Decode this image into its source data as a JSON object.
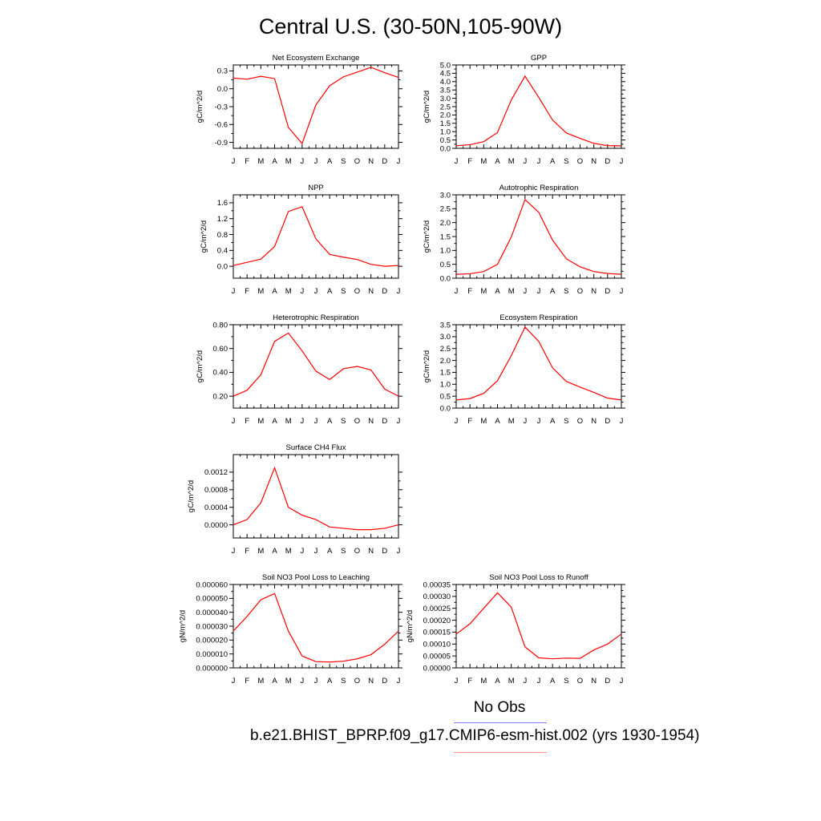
{
  "title": "Central U.S. (30-50N,105-90W)",
  "months": [
    "J",
    "F",
    "M",
    "A",
    "M",
    "J",
    "J",
    "A",
    "S",
    "O",
    "N",
    "D",
    "J"
  ],
  "line_color": "#ff0000",
  "legend": {
    "obs_label": "No Obs",
    "obs_color": "#7b7bef",
    "run_label": "b.e21.BHIST_BPRP.f09_g17.CMIP6-esm-hist.002 (yrs 1930-1954)",
    "run_color": "#ff8a8a"
  },
  "chart_data": [
    {
      "type": "line",
      "title": "Net Ecosystem Exchange",
      "ylabel": "gC/m^2/d",
      "ylim": [
        -1.0,
        0.4
      ],
      "yticks": [
        0.3,
        0.0,
        -0.3,
        -0.6,
        -0.9
      ],
      "yticklabels": [
        "0.3",
        "0.0",
        "-0.3",
        "-0.6",
        "-0.9"
      ],
      "series": [
        {
          "values": [
            0.18,
            0.16,
            0.21,
            0.17,
            -0.65,
            -0.92,
            -0.27,
            0.05,
            0.2,
            0.28,
            0.36,
            0.27,
            0.19
          ]
        }
      ]
    },
    {
      "type": "line",
      "title": "GPP",
      "ylabel": "gC/m^2/d",
      "ylim": [
        0.0,
        5.0
      ],
      "yticks": [
        0,
        0.5,
        1,
        1.5,
        2,
        2.5,
        3,
        3.5,
        4,
        4.5,
        5
      ],
      "yticklabels": [
        "0.0",
        "0.5",
        "1.0",
        "1.5",
        "2.0",
        "2.5",
        "3.0",
        "3.5",
        "4.0",
        "4.5",
        "5.0"
      ],
      "series": [
        {
          "values": [
            0.15,
            0.22,
            0.4,
            0.95,
            2.9,
            4.33,
            3.05,
            1.7,
            0.92,
            0.6,
            0.3,
            0.16,
            0.15
          ]
        }
      ]
    },
    {
      "type": "line",
      "title": "NPP",
      "ylabel": "gC/m^2/d",
      "ylim": [
        -0.3,
        1.8
      ],
      "yticks": [
        0.0,
        0.4,
        0.8,
        1.2,
        1.6
      ],
      "yticklabels": [
        "0.0",
        "0.4",
        "0.8",
        "1.2",
        "1.6"
      ],
      "series": [
        {
          "values": [
            0.02,
            0.1,
            0.18,
            0.5,
            1.38,
            1.5,
            0.69,
            0.3,
            0.23,
            0.17,
            0.05,
            0.0,
            0.02
          ]
        }
      ]
    },
    {
      "type": "line",
      "title": "Autotrophic Respiration",
      "ylabel": "gC/m^2/d",
      "ylim": [
        0.0,
        3.0
      ],
      "yticks": [
        0,
        0.5,
        1,
        1.5,
        2,
        2.5,
        3
      ],
      "yticklabels": [
        "0.0",
        "0.5",
        "1.0",
        "1.5",
        "2.0",
        "2.5",
        "3.0"
      ],
      "series": [
        {
          "values": [
            0.14,
            0.16,
            0.24,
            0.5,
            1.48,
            2.83,
            2.37,
            1.37,
            0.7,
            0.41,
            0.24,
            0.17,
            0.14
          ]
        }
      ]
    },
    {
      "type": "line",
      "title": "Heterotrophic Respiration",
      "ylabel": "gC/m^2/d",
      "ylim": [
        0.1,
        0.8
      ],
      "yticks": [
        0.2,
        0.4,
        0.6,
        0.8
      ],
      "yticklabels": [
        "0.20",
        "0.40",
        "0.60",
        "0.80"
      ],
      "series": [
        {
          "values": [
            0.2,
            0.25,
            0.38,
            0.66,
            0.73,
            0.58,
            0.41,
            0.34,
            0.43,
            0.45,
            0.42,
            0.26,
            0.2
          ]
        }
      ]
    },
    {
      "type": "line",
      "title": "Ecosystem Respiration",
      "ylabel": "gC/m^2/d",
      "ylim": [
        0.0,
        3.5
      ],
      "yticks": [
        0,
        0.5,
        1,
        1.5,
        2,
        2.5,
        3,
        3.5
      ],
      "yticklabels": [
        "0.0",
        "0.5",
        "1.0",
        "1.5",
        "2.0",
        "2.5",
        "3.0",
        "3.5"
      ],
      "series": [
        {
          "values": [
            0.34,
            0.4,
            0.62,
            1.15,
            2.2,
            3.4,
            2.8,
            1.69,
            1.12,
            0.88,
            0.66,
            0.42,
            0.34
          ]
        }
      ]
    },
    {
      "type": "line",
      "title": "Surface CH4 Flux",
      "ylabel": "gC/m^2/d",
      "ylim": [
        -0.0003,
        0.0016
      ],
      "yticks": [
        0.0,
        0.0004,
        0.0008,
        0.0012
      ],
      "yticklabels": [
        "0.0000",
        "0.0004",
        "0.0008",
        "0.0012"
      ],
      "series": [
        {
          "values": [
            0.0,
            0.00012,
            0.0005,
            0.0013,
            0.0004,
            0.00022,
            0.00012,
            -5e-05,
            -8e-05,
            -0.00011,
            -0.00011,
            -8e-05,
            0.0
          ]
        }
      ]
    },
    {
      "type": "line",
      "title": "Soil NO3 Pool Loss to Leaching",
      "ylabel": "gN/m^2/d",
      "ylim": [
        0.0,
        6e-05
      ],
      "yticks": [
        0,
        1e-05,
        2e-05,
        3e-05,
        4e-05,
        5e-05,
        6e-05
      ],
      "yticklabels": [
        "0.000000",
        "0.000010",
        "0.000020",
        "0.000030",
        "0.000040",
        "0.000050",
        "0.000060"
      ],
      "series": [
        {
          "values": [
            2.65e-05,
            3.7e-05,
            4.9e-05,
            5.35e-05,
            2.65e-05,
            8.5e-06,
            4.5e-06,
            4.2e-06,
            4.8e-06,
            6.5e-06,
            9.5e-06,
            1.7e-05,
            2.65e-05
          ]
        }
      ]
    },
    {
      "type": "line",
      "title": "Soil NO3 Pool Loss to Runoff",
      "ylabel": "gN/m^2/d",
      "ylim": [
        0.0,
        0.00035
      ],
      "yticks": [
        0,
        5e-05,
        0.0001,
        0.00015,
        0.0002,
        0.00025,
        0.0003,
        0.00035
      ],
      "yticklabels": [
        "0.00000",
        "0.00005",
        "0.00010",
        "0.00015",
        "0.00020",
        "0.00025",
        "0.00030",
        "0.00035"
      ],
      "series": [
        {
          "values": [
            0.000142,
            0.000185,
            0.00025,
            0.000315,
            0.000255,
            8.8e-05,
            4.2e-05,
            3.8e-05,
            4.1e-05,
            4e-05,
            7.5e-05,
            0.0001,
            0.000142
          ]
        }
      ]
    }
  ]
}
